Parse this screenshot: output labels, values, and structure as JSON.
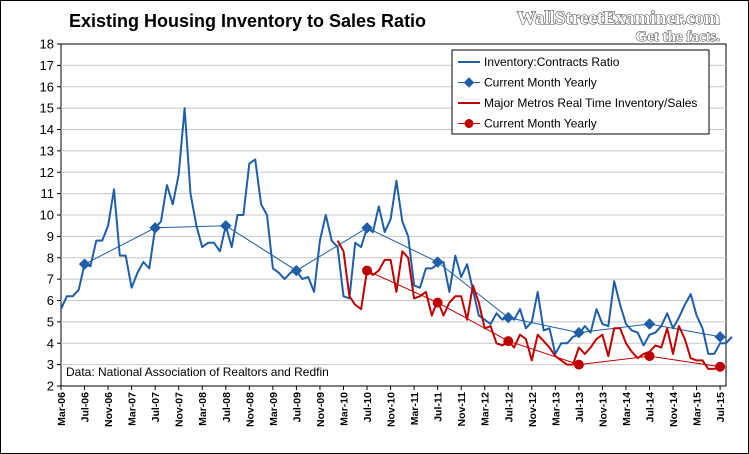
{
  "chart_data": {
    "type": "line",
    "title": "Existing Housing Inventory to Sales Ratio",
    "brand": {
      "name": "WallStreetExaminer.com",
      "tagline": "Get the facts."
    },
    "source_note": "Data: National Association of Realtors and Redfin",
    "ylim": [
      2,
      18
    ],
    "yticks": [
      2,
      3,
      4,
      5,
      6,
      7,
      8,
      9,
      10,
      11,
      12,
      13,
      14,
      15,
      16,
      17,
      18
    ],
    "xlim": [
      "2006-03",
      "2015-08"
    ],
    "xticks": [
      "Mar-06",
      "Jul-06",
      "Nov-06",
      "Mar-07",
      "Jul-07",
      "Nov-07",
      "Mar-08",
      "Jul-08",
      "Nov-08",
      "Mar-09",
      "Jul-09",
      "Nov-09",
      "Mar-10",
      "Jul-10",
      "Nov-10",
      "Mar-11",
      "Jul-11",
      "Nov-11",
      "Mar-12",
      "Jul-12",
      "Nov-12",
      "Mar-13",
      "Jul-13",
      "Nov-13",
      "Mar-14",
      "Jul-14",
      "Nov-14",
      "Mar-15",
      "Jul-15"
    ],
    "grid": true,
    "legend_position": "top-right",
    "colors": {
      "blue": "#1f5fa8",
      "red": "#c00000",
      "background": "#ffffff"
    },
    "series": [
      {
        "name": "Inventory:Contracts Ratio",
        "color": "#1f5fa8",
        "marker": "none",
        "start": "2006-03",
        "values": [
          5.6,
          6.2,
          6.2,
          6.5,
          7.7,
          7.6,
          8.8,
          8.8,
          9.5,
          11.2,
          8.1,
          8.1,
          6.6,
          7.3,
          7.8,
          7.5,
          9.4,
          9.7,
          11.4,
          10.5,
          11.9,
          15.0,
          11.0,
          9.5,
          8.5,
          8.7,
          8.7,
          8.3,
          9.5,
          8.5,
          10.0,
          10.0,
          12.4,
          12.6,
          10.5,
          10.0,
          7.5,
          7.3,
          7.0,
          7.3,
          7.4,
          7.0,
          7.1,
          6.4,
          8.8,
          10.0,
          8.8,
          8.5,
          6.2,
          6.1,
          8.7,
          8.5,
          9.4,
          9.2,
          10.4,
          9.2,
          9.8,
          11.6,
          9.7,
          9.0,
          6.7,
          6.6,
          7.5,
          7.5,
          7.7,
          7.8,
          6.4,
          8.1,
          7.1,
          7.7,
          6.5,
          5.3,
          5.1,
          4.9,
          5.4,
          5.1,
          5.3,
          5.1,
          5.6,
          4.7,
          5.0,
          6.4,
          4.6,
          4.7,
          3.5,
          4.0,
          4.0,
          4.3,
          4.4,
          4.8,
          4.5,
          5.6,
          4.9,
          4.8,
          6.9,
          5.8,
          4.9,
          4.6,
          4.5,
          3.9,
          4.4,
          4.5,
          4.8,
          5.4,
          4.7,
          5.2,
          5.8,
          6.3,
          5.3,
          4.7,
          3.5,
          3.5,
          4.0,
          4.0,
          4.3
        ]
      },
      {
        "name": "Current Month Yearly",
        "color": "#1f5fa8",
        "marker": "diamond",
        "x": [
          "2006-07",
          "2007-07",
          "2008-07",
          "2009-07",
          "2010-07",
          "2011-07",
          "2012-07",
          "2013-07",
          "2014-07",
          "2015-07"
        ],
        "values": [
          7.7,
          9.4,
          9.5,
          7.4,
          9.4,
          7.8,
          5.2,
          4.5,
          4.9,
          4.3
        ]
      },
      {
        "name": "Major Metros Real Time Inventory/Sales",
        "color": "#c00000",
        "marker": "none",
        "start": "2010-02",
        "values": [
          8.8,
          8.3,
          6.2,
          5.8,
          5.6,
          7.4,
          7.2,
          7.4,
          7.9,
          7.9,
          6.4,
          8.3,
          8.0,
          6.1,
          6.2,
          6.4,
          5.3,
          6.0,
          5.3,
          5.9,
          6.2,
          6.2,
          5.1,
          6.7,
          5.9,
          4.7,
          4.8,
          4.0,
          3.9,
          4.1,
          3.8,
          4.4,
          4.2,
          3.2,
          4.4,
          4.1,
          3.8,
          3.4,
          3.2,
          3.0,
          3.0,
          3.8,
          3.5,
          3.8,
          4.2,
          4.4,
          3.4,
          4.7,
          4.7,
          4.0,
          3.6,
          3.3,
          3.5,
          3.6,
          3.9,
          3.8,
          4.7,
          3.5,
          4.8,
          4.2,
          3.3,
          3.2,
          3.2,
          2.8,
          2.8,
          2.9
        ]
      },
      {
        "name": "Current Month Yearly",
        "color": "#c00000",
        "marker": "circle",
        "x": [
          "2010-07",
          "2011-07",
          "2012-07",
          "2013-07",
          "2014-07",
          "2015-07"
        ],
        "values": [
          7.4,
          5.9,
          4.1,
          3.0,
          3.4,
          2.9
        ]
      }
    ]
  }
}
